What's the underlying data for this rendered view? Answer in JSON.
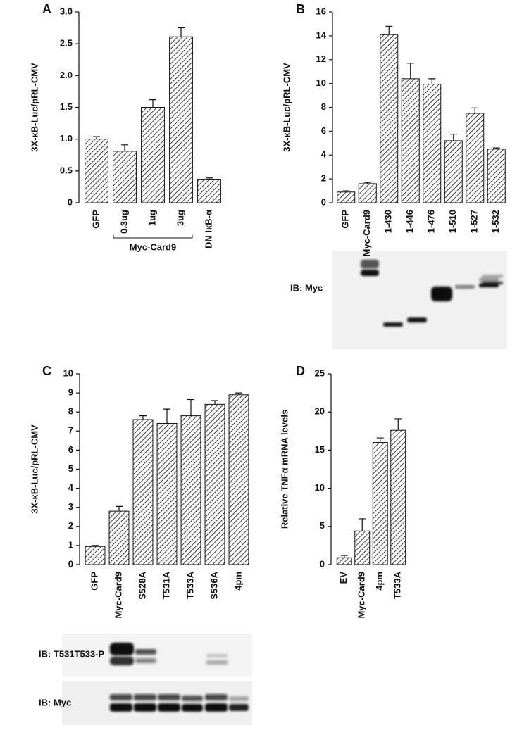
{
  "chart_data": [
    {
      "type": "bar",
      "panel": "A",
      "ylabel": "3X-κB-Luc/pRL-CMV",
      "categories": [
        "GFP",
        "0.3ug",
        "1ug",
        "3ug",
        "DN IκB-α"
      ],
      "values": [
        1.0,
        0.81,
        1.5,
        2.61,
        0.37
      ],
      "errors": [
        0.04,
        0.1,
        0.12,
        0.14,
        0.02
      ],
      "group_label": "Myc-Card9",
      "ylim": [
        0,
        3
      ],
      "yticks": [
        0,
        0.5,
        {
          "value": 1,
          "label": "1.0"
        },
        1.5,
        {
          "value": 2,
          "label": "2.0"
        },
        2.5,
        {
          "value": 3,
          "label": "3.0"
        }
      ]
    },
    {
      "type": "bar",
      "panel": "B",
      "ylabel": "3X-κB-Luc/pRL-CMV",
      "categories": [
        "GFP",
        "Myc-Card9",
        "1-430",
        "1-446",
        "1-476",
        "1-510",
        "1-527",
        "1-532"
      ],
      "values": [
        0.9,
        1.6,
        14.1,
        10.4,
        9.95,
        5.2,
        7.5,
        4.5
      ],
      "errors": [
        0.1,
        0.1,
        0.7,
        1.3,
        0.45,
        0.55,
        0.45,
        0.1
      ],
      "blots": [
        {
          "label": "IB: Myc"
        }
      ],
      "ylim": [
        0,
        16
      ],
      "yticks": [
        0,
        2,
        4,
        6,
        8,
        10,
        12,
        14,
        16
      ]
    },
    {
      "type": "bar",
      "panel": "C",
      "ylabel": "3X-κB-Luc/pRL-CMV",
      "categories": [
        "GFP",
        "Myc-Card9",
        "S528A",
        "T531A",
        "T533A",
        "S536A",
        "4pm"
      ],
      "values": [
        0.95,
        2.8,
        7.6,
        7.4,
        7.8,
        8.4,
        8.9
      ],
      "errors": [
        0.05,
        0.25,
        0.2,
        0.75,
        0.85,
        0.2,
        0.1
      ],
      "blots": [
        {
          "label": "IB: T531T533-P"
        },
        {
          "label": "IB: Myc"
        }
      ],
      "ylim": [
        0,
        10
      ],
      "yticks": [
        0,
        1,
        2,
        3,
        4,
        5,
        6,
        7,
        8,
        9,
        10
      ]
    },
    {
      "type": "bar",
      "panel": "D",
      "ylabel": "Relative TNFα mRNA levels",
      "categories": [
        "EV",
        "Myc-Card9",
        "4pm",
        "T533A"
      ],
      "values": [
        0.9,
        4.4,
        16.0,
        17.6
      ],
      "errors": [
        0.3,
        1.6,
        0.6,
        1.5
      ],
      "ylim": [
        0,
        25
      ],
      "yticks": [
        0,
        5,
        10,
        15,
        20,
        25
      ]
    }
  ]
}
